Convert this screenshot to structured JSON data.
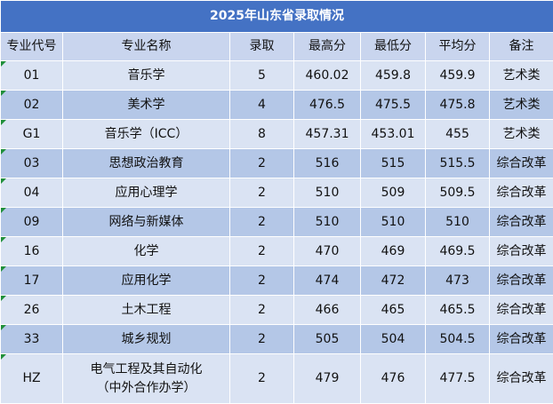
{
  "table": {
    "title": "2025年山东省录取情况",
    "header": [
      "专业代号",
      "专业名称",
      "录取",
      "最高分",
      "最低分",
      "平均分",
      "备注"
    ],
    "rows": [
      [
        "01",
        "音乐学",
        "5",
        "460.02",
        "459.8",
        "459.9",
        "艺术类"
      ],
      [
        "02",
        "美术学",
        "4",
        "476.5",
        "475.5",
        "475.8",
        "艺术类"
      ],
      [
        "G1",
        "音乐学（ICC）",
        "8",
        "457.31",
        "453.01",
        "455",
        "艺术类"
      ],
      [
        "03",
        "思想政治教育",
        "2",
        "516",
        "515",
        "515.5",
        "综合改革"
      ],
      [
        "04",
        "应用心理学",
        "2",
        "510",
        "509",
        "509.5",
        "综合改革"
      ],
      [
        "09",
        "网络与新媒体",
        "2",
        "510",
        "510",
        "510",
        "综合改革"
      ],
      [
        "16",
        "化学",
        "2",
        "470",
        "469",
        "469.5",
        "综合改革"
      ],
      [
        "17",
        "应用化学",
        "2",
        "474",
        "472",
        "473",
        "综合改革"
      ],
      [
        "26",
        "土木工程",
        "2",
        "466",
        "465",
        "465.5",
        "综合改革"
      ],
      [
        "33",
        "城乡规划",
        "2",
        "505",
        "504",
        "504.5",
        "综合改革"
      ],
      [
        "HZ",
        "电气工程及其自动化\n（中外合作办学）",
        "2",
        "479",
        "476",
        "477.5",
        "综合改革"
      ]
    ]
  }
}
